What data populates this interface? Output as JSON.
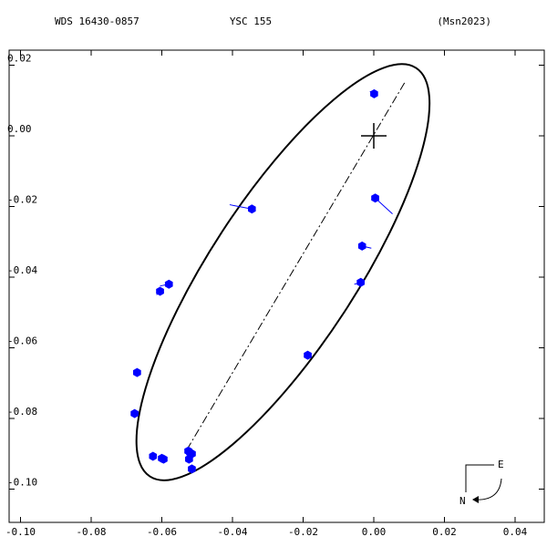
{
  "header": {
    "left": "WDS 16430-0857",
    "center": "YSC 155",
    "right": "(Msn2023)"
  },
  "compass": {
    "east_label": "E",
    "north_label": "N"
  },
  "colors": {
    "points": "#0000ff",
    "ink": "#000000"
  },
  "chart_data": {
    "type": "scatter",
    "title": "",
    "xlabel": "",
    "ylabel": "",
    "xlim": [
      -0.1,
      0.04
    ],
    "ylim": [
      -0.1,
      0.02
    ],
    "grid": false,
    "x_ticks": [
      -0.1,
      -0.08,
      -0.06,
      -0.04,
      -0.02,
      0.0,
      0.02,
      0.04
    ],
    "y_ticks": [
      0.02,
      0.0,
      -0.02,
      -0.04,
      -0.06,
      -0.08,
      -0.1
    ],
    "x_tick_labels": [
      "-0.10",
      "-0.08",
      "-0.06",
      "-0.04",
      "-0.02",
      "0.00",
      "0.02",
      "0.04"
    ],
    "y_tick_labels": [
      "0.02",
      "0.00",
      "-0.02",
      "-0.04",
      "-0.06",
      "-0.08",
      "-0.10"
    ],
    "primary": [
      0.0,
      0.0
    ],
    "orbit": {
      "center": [
        -0.0257,
        -0.0386
      ],
      "semi_major": 0.069,
      "semi_minor": 0.0207,
      "major_axis_angle_deg": 56.9
    },
    "line_of_nodes": [
      [
        0.0087,
        0.015
      ],
      [
        -0.053,
        -0.089
      ]
    ],
    "observations": [
      {
        "x": 0.0001,
        "y": 0.0119,
        "orbit": [
          -0.0011,
          0.0126
        ]
      },
      {
        "x": 0.0004,
        "y": -0.0176,
        "orbit": [
          0.0053,
          -0.0221
        ]
      },
      {
        "x": -0.0033,
        "y": -0.0312,
        "orbit": [
          -0.0007,
          -0.0318
        ]
      },
      {
        "x": -0.0037,
        "y": -0.0415,
        "orbit": [
          -0.0055,
          -0.042
        ]
      },
      {
        "x": -0.0345,
        "y": -0.0207,
        "orbit": [
          -0.0408,
          -0.0195
        ]
      },
      {
        "x": -0.0187,
        "y": -0.0621,
        "orbit": [
          -0.019,
          -0.0625
        ]
      },
      {
        "x": -0.058,
        "y": -0.042,
        "orbit": [
          -0.0605,
          -0.0425
        ]
      },
      {
        "x": -0.0605,
        "y": -0.044,
        "orbit": [
          -0.0615,
          -0.045
        ]
      },
      {
        "x": -0.067,
        "y": -0.067,
        "orbit": [
          -0.067,
          -0.067
        ]
      },
      {
        "x": -0.0677,
        "y": -0.0786,
        "orbit": [
          -0.0679,
          -0.0786
        ]
      },
      {
        "x": -0.0625,
        "y": -0.0907,
        "orbit": [
          -0.0625,
          -0.0907
        ]
      },
      {
        "x": -0.06,
        "y": -0.0913,
        "orbit": [
          -0.06,
          -0.0915
        ]
      },
      {
        "x": -0.0595,
        "y": -0.0915,
        "orbit": [
          -0.0595,
          -0.0918
        ]
      },
      {
        "x": -0.0525,
        "y": -0.0892,
        "orbit": [
          -0.0525,
          -0.0892
        ]
      },
      {
        "x": -0.052,
        "y": -0.0897,
        "orbit": [
          -0.052,
          -0.0897
        ]
      },
      {
        "x": -0.0515,
        "y": -0.09,
        "orbit": [
          -0.0515,
          -0.09
        ]
      },
      {
        "x": -0.0523,
        "y": -0.0915,
        "orbit": [
          -0.0523,
          -0.0915
        ]
      },
      {
        "x": -0.0515,
        "y": -0.0943,
        "orbit": [
          -0.0515,
          -0.0943
        ]
      }
    ]
  }
}
